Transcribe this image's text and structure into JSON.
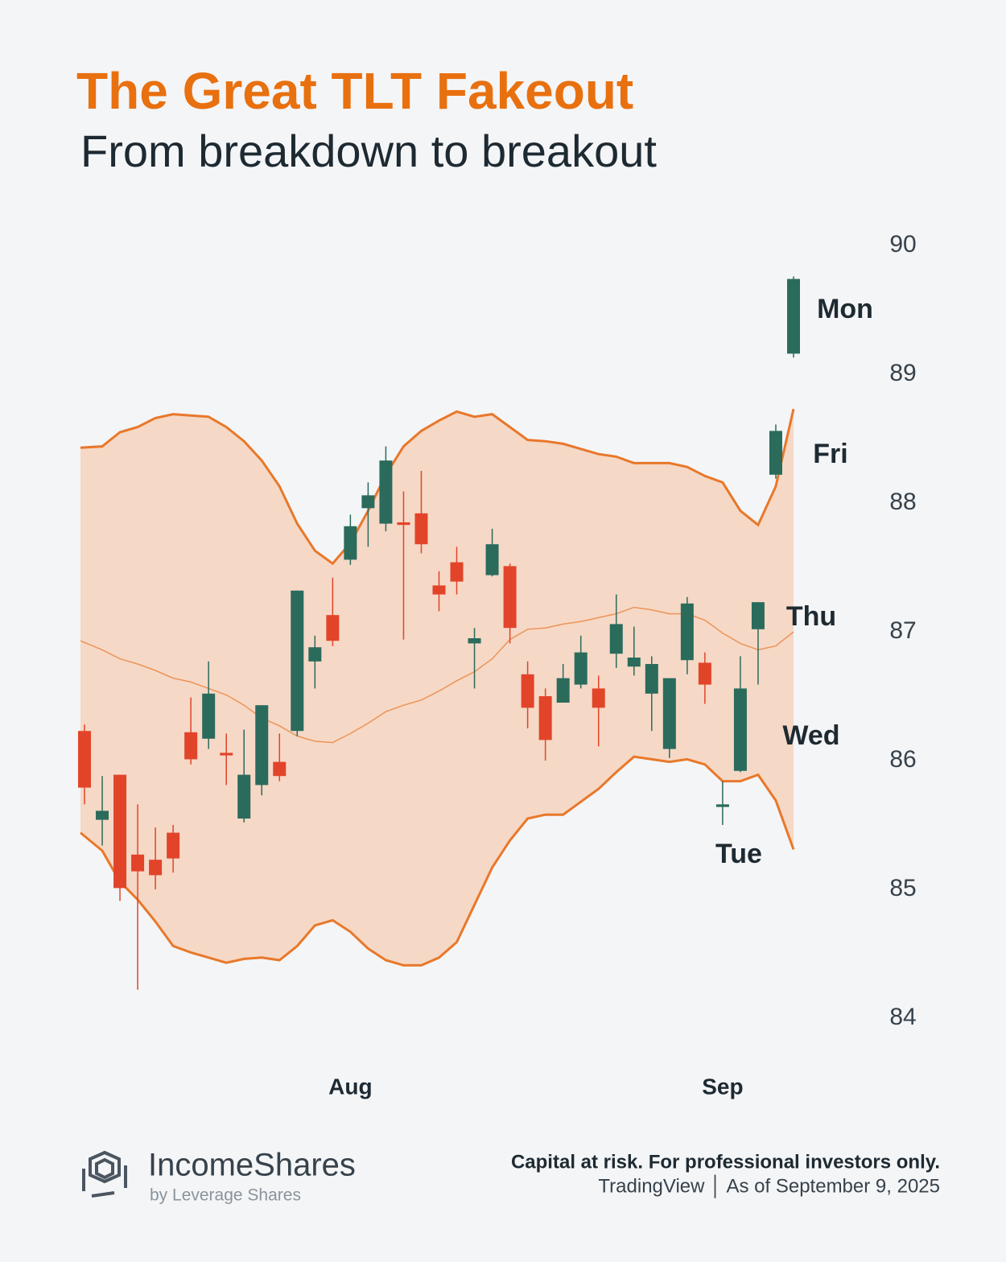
{
  "chart_data": {
    "type": "candlestick",
    "title": "The Great TLT Fakeout",
    "subtitle": "From breakdown to breakout",
    "categories": [
      null,
      null,
      null,
      null,
      null,
      null,
      null,
      null,
      null,
      null,
      null,
      null,
      null,
      null,
      null,
      "Aug",
      null,
      null,
      null,
      null,
      null,
      null,
      null,
      null,
      null,
      null,
      null,
      null,
      null,
      null,
      null,
      null,
      null,
      null,
      null,
      null,
      "Sep",
      null,
      null,
      null,
      null
    ],
    "open": [
      86.23,
      85.54,
      85.89,
      85.27,
      85.23,
      85.44,
      86.22,
      86.17,
      86.06,
      85.55,
      85.81,
      85.99,
      86.23,
      86.77,
      87.13,
      87.56,
      87.96,
      87.84,
      87.85,
      87.92,
      87.36,
      87.54,
      86.91,
      87.44,
      87.51,
      86.67,
      86.5,
      86.45,
      86.59,
      86.56,
      86.83,
      86.73,
      86.52,
      86.09,
      86.78,
      86.76,
      85.64,
      85.92,
      87.02,
      88.22,
      89.16
    ],
    "high": [
      86.28,
      85.88,
      85.89,
      85.66,
      85.48,
      85.5,
      86.49,
      86.77,
      86.21,
      86.24,
      86.43,
      86.21,
      87.32,
      86.97,
      87.42,
      87.91,
      88.16,
      88.44,
      88.09,
      88.25,
      87.47,
      87.66,
      87.03,
      87.8,
      87.53,
      86.77,
      86.56,
      86.75,
      86.97,
      86.66,
      87.29,
      87.04,
      86.81,
      86.64,
      87.27,
      86.84,
      85.84,
      86.81,
      87.23,
      88.61,
      89.76
    ],
    "low": [
      85.66,
      85.34,
      84.91,
      84.22,
      85.0,
      85.13,
      85.97,
      86.09,
      85.81,
      85.52,
      85.73,
      85.84,
      86.19,
      86.56,
      86.89,
      87.52,
      87.66,
      87.78,
      86.94,
      87.61,
      87.16,
      87.29,
      86.56,
      87.43,
      86.91,
      86.25,
      86.0,
      86.45,
      86.56,
      86.11,
      86.72,
      86.66,
      86.23,
      86.02,
      86.67,
      86.44,
      85.5,
      85.91,
      86.59,
      88.19,
      89.13
    ],
    "close": [
      85.79,
      85.61,
      85.01,
      85.14,
      85.11,
      85.24,
      86.01,
      86.52,
      86.04,
      85.89,
      86.43,
      85.88,
      87.32,
      86.88,
      86.93,
      87.82,
      88.06,
      88.33,
      87.83,
      87.68,
      87.29,
      87.39,
      86.95,
      87.68,
      87.03,
      86.41,
      86.16,
      86.64,
      86.84,
      86.41,
      87.06,
      86.8,
      86.75,
      86.64,
      87.22,
      86.59,
      85.66,
      86.56,
      87.23,
      88.56,
      89.74
    ],
    "bands": {
      "upper": [
        88.43,
        88.44,
        88.55,
        88.59,
        88.66,
        88.69,
        88.68,
        88.67,
        88.59,
        88.48,
        88.33,
        88.13,
        87.84,
        87.63,
        87.53,
        87.69,
        87.94,
        88.22,
        88.44,
        88.56,
        88.64,
        88.71,
        88.67,
        88.69,
        88.59,
        88.49,
        88.48,
        88.46,
        88.42,
        88.38,
        88.36,
        88.31,
        88.31,
        88.31,
        88.28,
        88.21,
        88.16,
        87.94,
        87.83,
        88.13,
        88.73
      ],
      "middle": [
        86.93,
        86.86,
        86.79,
        86.75,
        86.7,
        86.64,
        86.61,
        86.56,
        86.51,
        86.43,
        86.33,
        86.27,
        86.19,
        86.15,
        86.14,
        86.21,
        86.29,
        86.38,
        86.43,
        86.47,
        86.54,
        86.62,
        86.69,
        86.79,
        86.94,
        87.02,
        87.03,
        87.06,
        87.08,
        87.11,
        87.14,
        87.19,
        87.17,
        87.14,
        87.14,
        87.09,
        86.99,
        86.91,
        86.86,
        86.89,
        87.0
      ],
      "lower": [
        85.44,
        85.3,
        85.06,
        84.92,
        84.75,
        84.56,
        84.51,
        84.47,
        84.43,
        84.46,
        84.47,
        84.45,
        84.56,
        84.72,
        84.76,
        84.67,
        84.54,
        84.45,
        84.41,
        84.41,
        84.47,
        84.59,
        84.88,
        85.17,
        85.38,
        85.55,
        85.58,
        85.58,
        85.68,
        85.78,
        85.91,
        86.03,
        86.01,
        85.99,
        86.01,
        85.97,
        85.84,
        85.84,
        85.89,
        85.69,
        85.31
      ]
    },
    "up_color": "#2a6b5c",
    "down_color": "#e2442a",
    "band_fill": "#f6d8c6",
    "band_line": "#e8782a",
    "annotations": [
      "Mon",
      "Fri",
      "Thu",
      "Wed",
      "Tue"
    ],
    "ylim": [
      84,
      90
    ],
    "yticks": [
      84,
      85,
      86,
      87,
      88,
      89,
      90
    ]
  },
  "footer": {
    "brand": "IncomeShares",
    "brand_sub": "by Leverage Shares",
    "disclaimer": "Capital at risk. For professional investors only.",
    "source": "TradingView │ As of September 9, 2025"
  }
}
